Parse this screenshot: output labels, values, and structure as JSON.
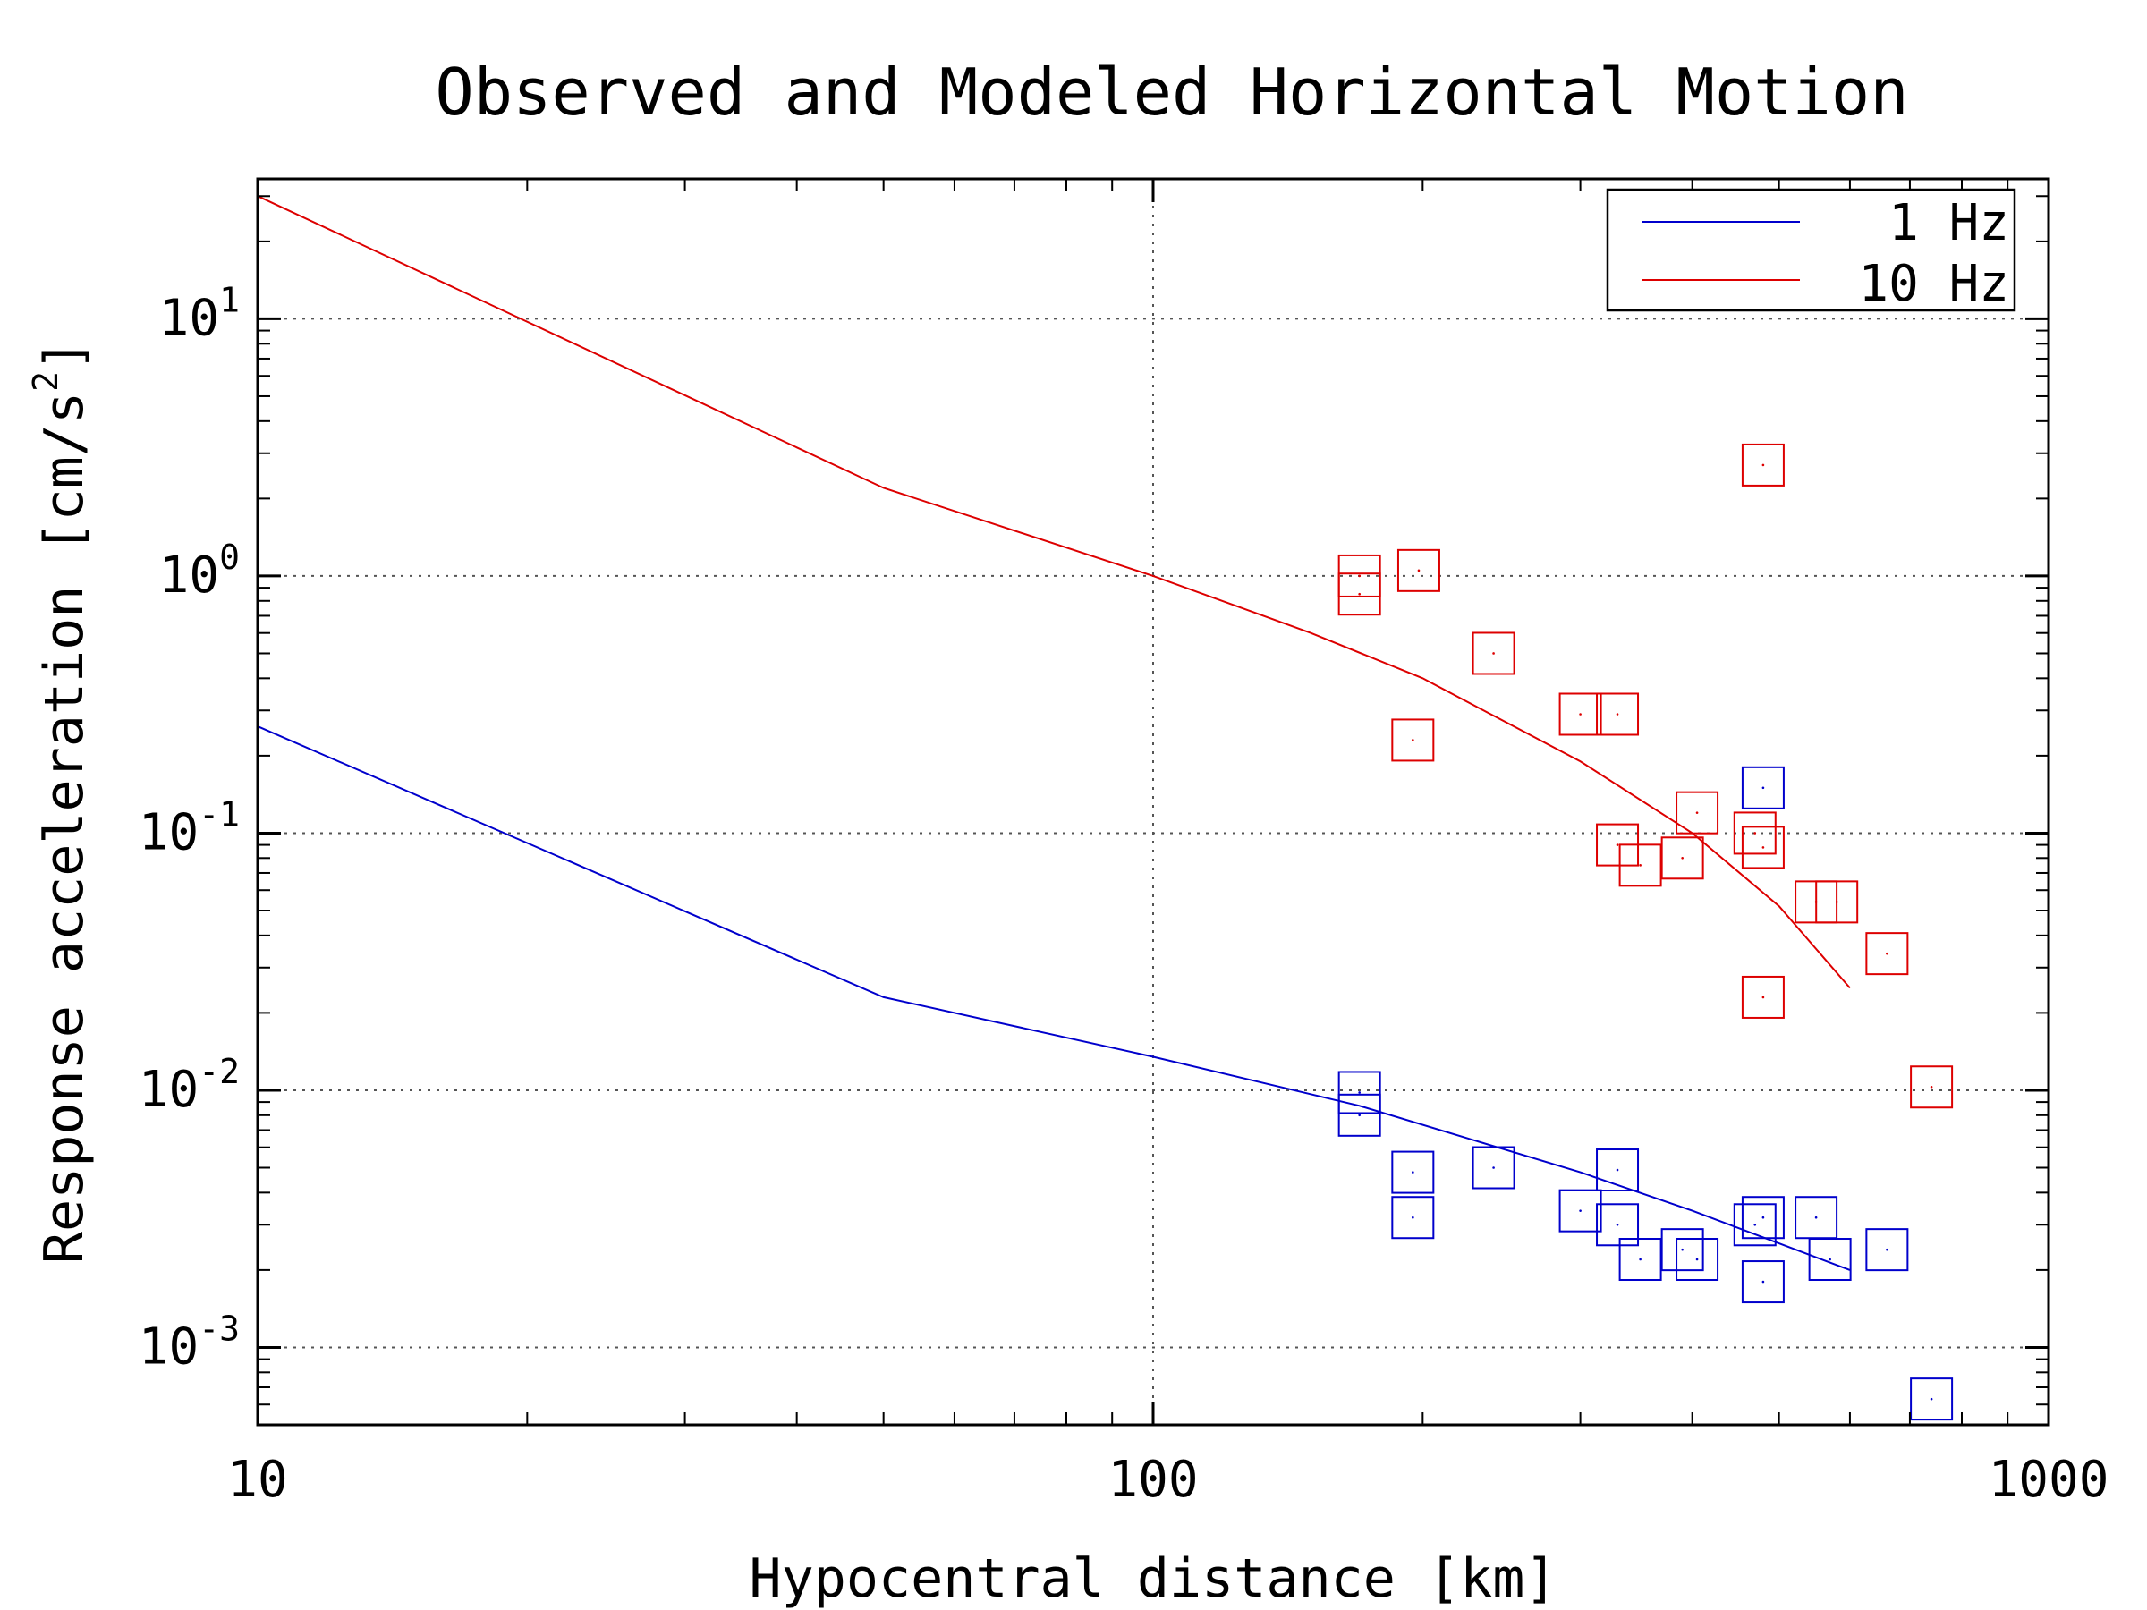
{
  "chart_data": {
    "type": "scatter",
    "title": "Observed and Modeled Horizontal Motion",
    "xlabel": "Hypocentral distance [km]",
    "ylabel": {
      "text": "Response acceleration [cm/s",
      "sup": "2",
      "tail": "]"
    },
    "x_scale": "log",
    "y_scale": "log",
    "xlim": [
      10,
      1000
    ],
    "ylim": [
      0.0005,
      35
    ],
    "grid": true,
    "legend_position": "top-right",
    "x_ticks": [
      {
        "value": 10,
        "label": "10"
      },
      {
        "value": 100,
        "label": "100"
      },
      {
        "value": 1000,
        "label": "1000"
      }
    ],
    "y_ticks": [
      {
        "value": 10,
        "base": "10",
        "exp": "1"
      },
      {
        "value": 1,
        "base": "10",
        "exp": "0"
      },
      {
        "value": 0.1,
        "base": "10",
        "exp": "-1"
      },
      {
        "value": 0.01,
        "base": "10",
        "exp": "-2"
      },
      {
        "value": 0.001,
        "base": "10",
        "exp": "-3"
      }
    ],
    "series": [
      {
        "name": "1 Hz",
        "color": "#0000cc",
        "line": [
          [
            10,
            0.26
          ],
          [
            50,
            0.023
          ],
          [
            100,
            0.0135
          ],
          [
            170,
            0.0087
          ],
          [
            300,
            0.0048
          ],
          [
            400,
            0.0034
          ],
          [
            600,
            0.002
          ]
        ],
        "points": [
          [
            170,
            0.0098
          ],
          [
            170,
            0.008
          ],
          [
            195,
            0.0048
          ],
          [
            195,
            0.0032
          ],
          [
            240,
            0.005
          ],
          [
            300,
            0.0034
          ],
          [
            330,
            0.0049
          ],
          [
            330,
            0.003
          ],
          [
            350,
            0.0022
          ],
          [
            390,
            0.0024
          ],
          [
            405,
            0.0022
          ],
          [
            470,
            0.003
          ],
          [
            480,
            0.0032
          ],
          [
            480,
            0.0018
          ],
          [
            480,
            0.15
          ],
          [
            550,
            0.0032
          ],
          [
            570,
            0.0022
          ],
          [
            660,
            0.0024
          ],
          [
            740,
            0.00063
          ]
        ]
      },
      {
        "name": "10 Hz",
        "color": "#dd0000",
        "line": [
          [
            10,
            30
          ],
          [
            50,
            2.2
          ],
          [
            100,
            1.0
          ],
          [
            150,
            0.6
          ],
          [
            200,
            0.4
          ],
          [
            300,
            0.19
          ],
          [
            400,
            0.1
          ],
          [
            500,
            0.052
          ],
          [
            600,
            0.025
          ]
        ],
        "points": [
          [
            170,
            1.0
          ],
          [
            170,
            0.85
          ],
          [
            198,
            1.05
          ],
          [
            195,
            0.23
          ],
          [
            240,
            0.5
          ],
          [
            300,
            0.29
          ],
          [
            330,
            0.29
          ],
          [
            330,
            0.09
          ],
          [
            350,
            0.075
          ],
          [
            390,
            0.08
          ],
          [
            405,
            0.12
          ],
          [
            470,
            0.1
          ],
          [
            480,
            0.088
          ],
          [
            480,
            2.7
          ],
          [
            480,
            0.023
          ],
          [
            550,
            0.054
          ],
          [
            580,
            0.054
          ],
          [
            660,
            0.034
          ],
          [
            740,
            0.0103
          ]
        ]
      }
    ]
  }
}
